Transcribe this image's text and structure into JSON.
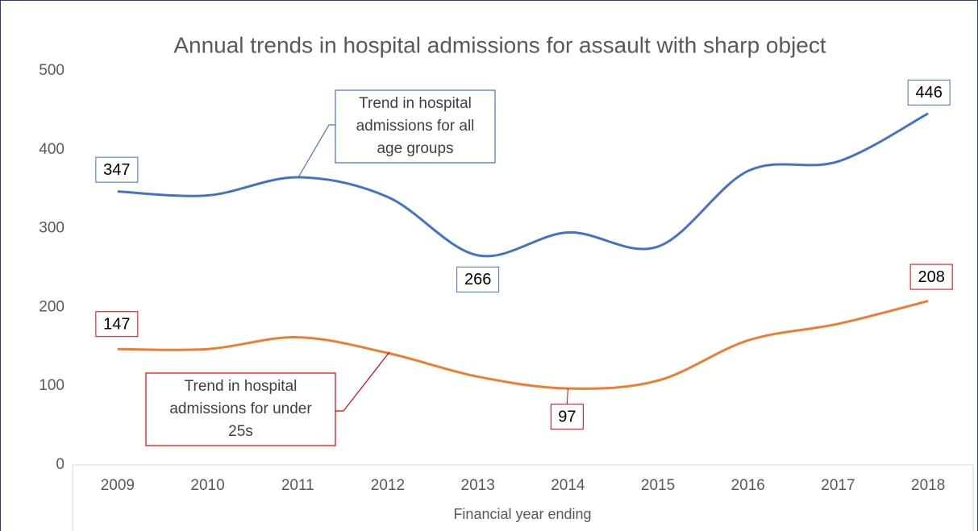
{
  "chart_data": {
    "type": "line",
    "title": "Annual trends in hospital admissions for assault with sharp object",
    "x_label": "Financial year ending",
    "categories": [
      "2009",
      "2010",
      "2011",
      "2012",
      "2013",
      "2014",
      "2015",
      "2016",
      "2017",
      "2018"
    ],
    "series": [
      {
        "name": "All age groups",
        "color": "#4472c4",
        "label_color": "#4472c4",
        "values": [
          347,
          342,
          365,
          340,
          266,
          295,
          277,
          373,
          385,
          446
        ],
        "value_labels": [
          "347",
          null,
          null,
          null,
          "266",
          null,
          null,
          null,
          null,
          "446"
        ]
      },
      {
        "name": "Under 25s",
        "color": "#ed7d31",
        "label_color": "#e00000",
        "values": [
          147,
          147,
          162,
          142,
          112,
          97,
          107,
          158,
          179,
          208
        ],
        "value_labels": [
          "147",
          null,
          null,
          null,
          null,
          "97",
          null,
          null,
          null,
          "208"
        ]
      }
    ],
    "annotations": [
      {
        "lines": [
          "Trend in hospital",
          "admissions for all",
          "age groups"
        ],
        "color": "#4472c4"
      },
      {
        "lines": [
          "Trend in hospital",
          "admissions for under",
          "25s"
        ],
        "color": "#e00000"
      }
    ],
    "ylim": [
      0,
      500
    ],
    "yticks": [
      0,
      100,
      200,
      300,
      400,
      500
    ],
    "grid": false,
    "smooth": true
  }
}
